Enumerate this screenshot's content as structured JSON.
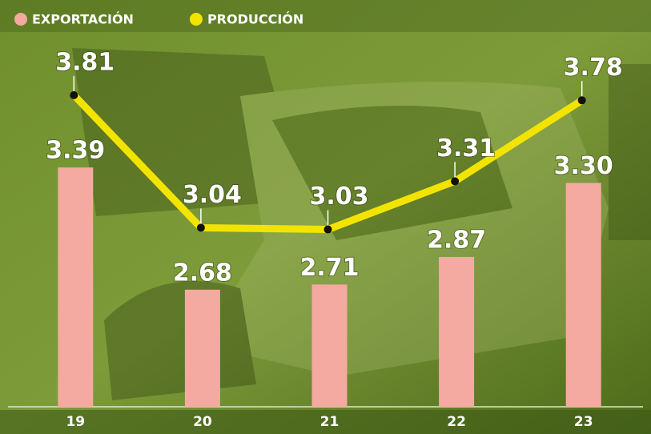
{
  "chart_data": {
    "type": "combo",
    "categories": [
      "19",
      "20",
      "21",
      "22",
      "23"
    ],
    "series": [
      {
        "name": "EXPORTACIÓN",
        "type": "bar",
        "color": "#f4aaa0",
        "values": [
          3.39,
          2.68,
          2.71,
          2.87,
          3.3
        ],
        "value_labels": [
          "3.39",
          "2.68",
          "2.71",
          "2.87",
          "3.30"
        ]
      },
      {
        "name": "PRODUCCIÓN",
        "type": "line",
        "color": "#f3e400",
        "values": [
          3.81,
          3.04,
          3.03,
          3.31,
          3.78
        ],
        "value_labels": [
          "3.81",
          "3.04",
          "3.03",
          "3.31",
          "3.78"
        ]
      }
    ],
    "ylim": [
      2,
      4
    ],
    "legend": "top-left"
  }
}
